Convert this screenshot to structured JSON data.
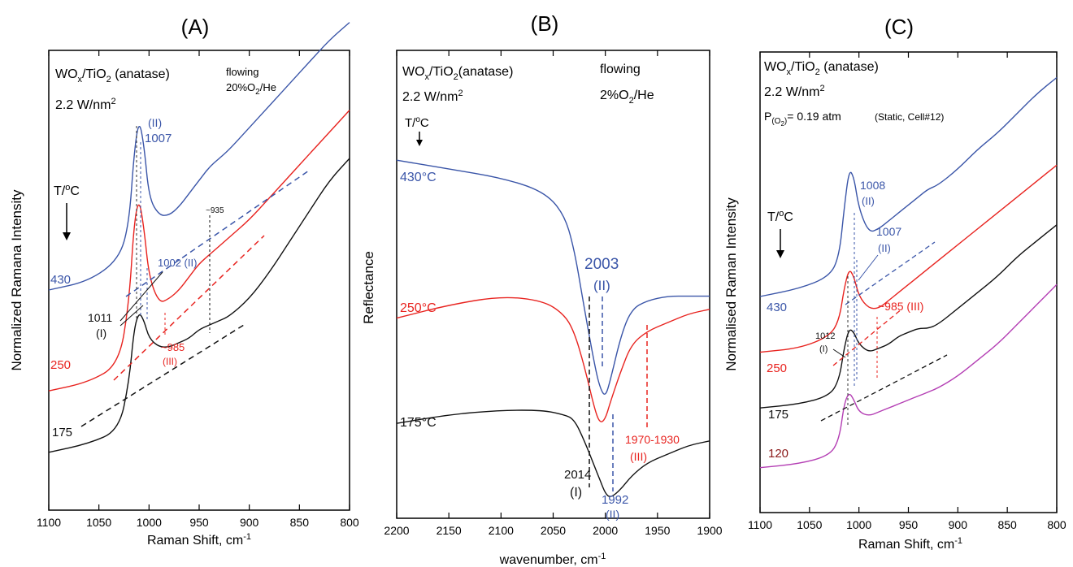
{
  "colors": {
    "blue": "#3a55a8",
    "red": "#e8231f",
    "black": "#111111",
    "purple": "#b43fb4",
    "darkred": "#8b1a1a",
    "frame": "#000000"
  },
  "chart_data": [
    {
      "type": "line",
      "panel_label": "(A)",
      "xlabel": "Raman Shift, cm",
      "xlabel_sup": "-1",
      "ylabel": "Normalized Ramana Intensity",
      "xlim": [
        1100,
        800
      ],
      "x_ticks": [
        "1100",
        "1050",
        "1000",
        "950",
        "900",
        "850",
        "800"
      ],
      "sample_main": "WO",
      "sample_sub": "x",
      "sample_rest": "/TiO",
      "sample_sub2": "2",
      "sample_end": " (anatase)",
      "power": "2.2 W/nm",
      "power_sup": "2",
      "gas_line1": "flowing",
      "gas_line2_a": "20%O",
      "gas_line2_sub": "2",
      "gas_line2_b": "/He",
      "temp_axis_label": "T/",
      "temp_axis_sup": "o",
      "temp_axis_unit": "C",
      "series": [
        {
          "name": "430",
          "color": "#3a55a8",
          "x": [
            1100,
            1060,
            1030,
            1020,
            1015,
            1010,
            1005,
            1000,
            990,
            980,
            970,
            960,
            950,
            940,
            930,
            920,
            900,
            880,
            860,
            840,
            820,
            800
          ],
          "y": [
            0.45,
            0.47,
            0.52,
            0.6,
            0.76,
            0.84,
            0.78,
            0.66,
            0.62,
            0.62,
            0.64,
            0.67,
            0.7,
            0.73,
            0.75,
            0.77,
            0.82,
            0.87,
            0.92,
            0.97,
            1.02,
            1.06
          ]
        },
        {
          "name": "250",
          "color": "#e8231f",
          "x": [
            1100,
            1060,
            1030,
            1020,
            1015,
            1010,
            1005,
            1000,
            990,
            980,
            970,
            960,
            950,
            940,
            930,
            920,
            900,
            880,
            860,
            840,
            820,
            800
          ],
          "y": [
            0.22,
            0.24,
            0.28,
            0.42,
            0.6,
            0.66,
            0.59,
            0.48,
            0.42,
            0.43,
            0.45,
            0.48,
            0.51,
            0.53,
            0.55,
            0.57,
            0.61,
            0.66,
            0.71,
            0.76,
            0.81,
            0.86
          ]
        },
        {
          "name": "175",
          "color": "#111111",
          "x": [
            1100,
            1060,
            1030,
            1020,
            1015,
            1010,
            1005,
            1000,
            990,
            980,
            970,
            960,
            950,
            940,
            930,
            920,
            900,
            880,
            860,
            840,
            820,
            800
          ],
          "y": [
            0.08,
            0.1,
            0.13,
            0.24,
            0.36,
            0.4,
            0.38,
            0.34,
            0.32,
            0.32,
            0.33,
            0.34,
            0.36,
            0.37,
            0.38,
            0.39,
            0.43,
            0.49,
            0.56,
            0.63,
            0.7,
            0.75
          ]
        }
      ],
      "annotations": [
        "(II)",
        "1007",
        "1002 (II)",
        "1011",
        "(I)",
        "~985",
        "(III)",
        "~935"
      ]
    },
    {
      "type": "line",
      "panel_label": "(B)",
      "xlabel": "wavenumber, cm",
      "xlabel_sup": "-1",
      "ylabel": "Reflectance",
      "xlim": [
        2200,
        1900
      ],
      "x_ticks": [
        "2200",
        "2150",
        "2100",
        "2050",
        "2000",
        "1950",
        "1900"
      ],
      "sample_main": "WO",
      "sample_sub": "x",
      "sample_rest": "/TiO",
      "sample_sub2": "2",
      "sample_end": "(anatase)",
      "power": "2.2 W/nm",
      "power_sup": "2",
      "gas_line1": "flowing",
      "gas_line2_a": "2%O",
      "gas_line2_sub": "2",
      "gas_line2_b": "/He",
      "temp_axis_label": "T/",
      "temp_axis_sup": "o",
      "temp_axis_unit": "C",
      "series": [
        {
          "name": "430°C",
          "color": "#3a55a8",
          "x": [
            2200,
            2150,
            2100,
            2060,
            2040,
            2030,
            2020,
            2010,
            2005,
            2000,
            1995,
            1985,
            1975,
            1960,
            1940,
            1920,
            1900
          ],
          "y": [
            0.82,
            0.8,
            0.78,
            0.75,
            0.7,
            0.62,
            0.48,
            0.35,
            0.3,
            0.28,
            0.32,
            0.42,
            0.48,
            0.5,
            0.51,
            0.51,
            0.51
          ]
        },
        {
          "name": "250°C",
          "color": "#e8231f",
          "x": [
            2200,
            2150,
            2100,
            2060,
            2040,
            2030,
            2020,
            2010,
            2005,
            2000,
            1995,
            1985,
            1975,
            1960,
            1940,
            1920,
            1900
          ],
          "y": [
            0.46,
            0.49,
            0.51,
            0.5,
            0.47,
            0.43,
            0.35,
            0.25,
            0.22,
            0.23,
            0.27,
            0.34,
            0.4,
            0.43,
            0.45,
            0.47,
            0.48
          ]
        },
        {
          "name": "175°C",
          "color": "#111111",
          "x": [
            2200,
            2150,
            2100,
            2060,
            2040,
            2030,
            2020,
            2010,
            2005,
            2000,
            1995,
            1985,
            1975,
            1960,
            1940,
            1920,
            1900
          ],
          "y": [
            0.22,
            0.24,
            0.25,
            0.25,
            0.24,
            0.23,
            0.18,
            0.12,
            0.09,
            0.06,
            0.05,
            0.07,
            0.1,
            0.13,
            0.15,
            0.17,
            0.18
          ]
        }
      ],
      "annotations": [
        "2003",
        "(II)",
        "2014",
        "(I)",
        "1992",
        "(II)",
        "1970-1930",
        "(III)"
      ]
    },
    {
      "type": "line",
      "panel_label": "(C)",
      "xlabel": "Raman Shift, cm",
      "xlabel_sup": "-1",
      "ylabel": "Normalised Raman Intensity",
      "xlim": [
        1100,
        800
      ],
      "x_ticks": [
        "1100",
        "1050",
        "1000",
        "950",
        "900",
        "850",
        "800"
      ],
      "sample_main": "WO",
      "sample_sub": "x",
      "sample_rest": "/TiO",
      "sample_sub2": "2",
      "sample_end": " (anatase)",
      "power": "2.2 W/nm",
      "power_sup": "2",
      "pressure_a": "P",
      "pressure_sub": "(O",
      "pressure_sub2": "2",
      "pressure_sub_end": ")",
      "pressure_b": "= 0.19 atm",
      "pressure_note": "(Static, Cell#12)",
      "temp_axis_label": "T/",
      "temp_axis_sup": "o",
      "temp_axis_unit": "C",
      "series": [
        {
          "name": "430",
          "color": "#3a55a8",
          "x": [
            1100,
            1060,
            1030,
            1020,
            1015,
            1010,
            1005,
            1000,
            990,
            980,
            970,
            960,
            950,
            940,
            930,
            920,
            900,
            880,
            860,
            840,
            820,
            800
          ],
          "y": [
            0.5,
            0.52,
            0.55,
            0.6,
            0.72,
            0.82,
            0.8,
            0.72,
            0.66,
            0.67,
            0.69,
            0.71,
            0.73,
            0.75,
            0.77,
            0.78,
            0.82,
            0.87,
            0.91,
            0.96,
            1.01,
            1.05
          ]
        },
        {
          "name": "250",
          "color": "#e8231f",
          "x": [
            1100,
            1060,
            1030,
            1020,
            1015,
            1010,
            1005,
            1000,
            990,
            980,
            970,
            960,
            950,
            940,
            930,
            920,
            900,
            880,
            860,
            840,
            820,
            800
          ],
          "y": [
            0.36,
            0.37,
            0.4,
            0.44,
            0.52,
            0.57,
            0.55,
            0.5,
            0.47,
            0.47,
            0.49,
            0.51,
            0.53,
            0.55,
            0.57,
            0.59,
            0.63,
            0.67,
            0.71,
            0.75,
            0.79,
            0.83
          ]
        },
        {
          "name": "175",
          "color": "#111111",
          "x": [
            1100,
            1060,
            1030,
            1020,
            1015,
            1010,
            1005,
            1000,
            990,
            980,
            970,
            960,
            950,
            940,
            930,
            920,
            900,
            880,
            860,
            840,
            820,
            800
          ],
          "y": [
            0.22,
            0.23,
            0.25,
            0.29,
            0.37,
            0.42,
            0.41,
            0.38,
            0.36,
            0.37,
            0.38,
            0.4,
            0.41,
            0.42,
            0.42,
            0.43,
            0.47,
            0.51,
            0.55,
            0.6,
            0.64,
            0.68
          ]
        },
        {
          "name": "120",
          "color": "#b43fb4",
          "x": [
            1100,
            1060,
            1030,
            1020,
            1015,
            1010,
            1005,
            1000,
            990,
            980,
            970,
            960,
            950,
            940,
            930,
            920,
            900,
            880,
            860,
            840,
            820,
            800
          ],
          "y": [
            0.07,
            0.08,
            0.1,
            0.14,
            0.23,
            0.26,
            0.24,
            0.21,
            0.2,
            0.21,
            0.22,
            0.23,
            0.24,
            0.25,
            0.26,
            0.27,
            0.3,
            0.34,
            0.38,
            0.43,
            0.48,
            0.53
          ]
        }
      ],
      "annotations": [
        "1008",
        "(II)",
        "1007",
        "(II)",
        "~985 (III)",
        "1012",
        "(I)"
      ]
    }
  ]
}
